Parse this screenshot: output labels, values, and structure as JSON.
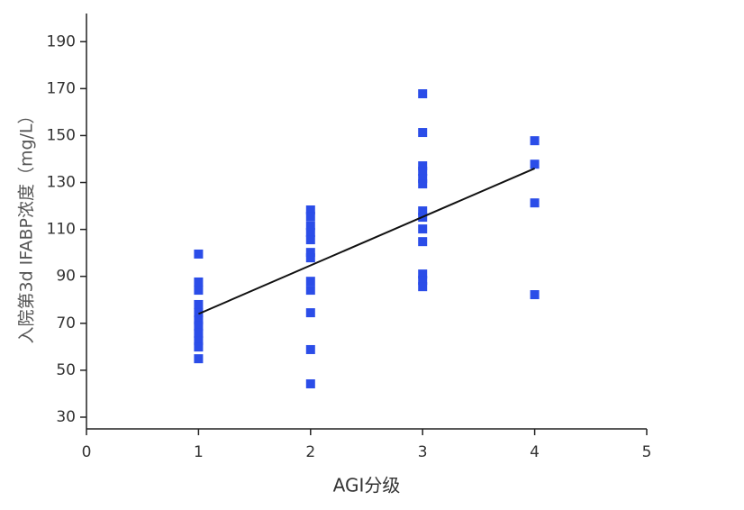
{
  "chart_data": {
    "type": "scatter",
    "xlabel": "AGI分级",
    "ylabel": "入院第3d IFABP浓度（mg/L）",
    "xlim": [
      0,
      5
    ],
    "xticks": [
      0,
      1,
      2,
      3,
      4,
      5
    ],
    "ylim": [
      25,
      202
    ],
    "yticks": [
      30,
      50,
      70,
      90,
      110,
      130,
      150,
      170,
      190
    ],
    "series": [
      {
        "color": "#2b4de8",
        "style": "square",
        "x": [
          1,
          1,
          1,
          1,
          1,
          1,
          1,
          1,
          1,
          1,
          1,
          2,
          2,
          2,
          2,
          2,
          2,
          2,
          2,
          2,
          2,
          2,
          2,
          3,
          3,
          3,
          3,
          3,
          3,
          3,
          3,
          3,
          3,
          3,
          3,
          3,
          4,
          4,
          4,
          4
        ],
        "values": [
          99.5,
          87.6,
          84.1,
          78,
          74.5,
          71.4,
          68.8,
          65.7,
          62.6,
          59.9,
          54.9,
          118.3,
          115.6,
          111.7,
          108.7,
          105.6,
          100.2,
          97.9,
          87.9,
          84.1,
          74.5,
          58.8,
          44.2,
          167.8,
          151.3,
          137.1,
          134.8,
          131.7,
          129.4,
          117.9,
          115.2,
          110.2,
          104.8,
          91,
          88.3,
          85.6,
          147.8,
          137.8,
          121.3,
          82.2
        ]
      },
      {
        "color": "#111111",
        "style": "line",
        "x": [
          1,
          4
        ],
        "values": [
          74,
          136
        ]
      }
    ]
  }
}
